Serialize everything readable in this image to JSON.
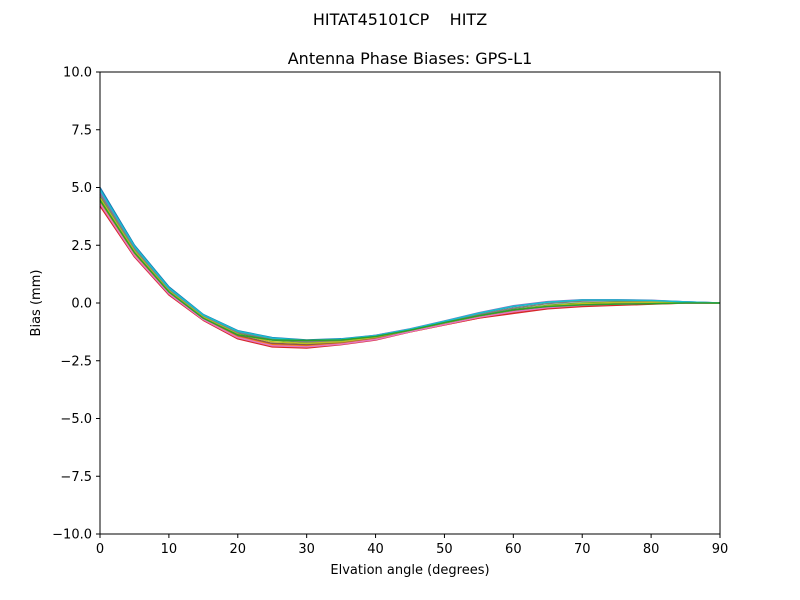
{
  "suptitle": "HITAT45101CP    HITZ",
  "chart_data": {
    "type": "line",
    "title": "Antenna Phase Biases: GPS-L1",
    "xlabel": "Elvation angle (degrees)",
    "ylabel": "Bias (mm)",
    "xlim": [
      0,
      90
    ],
    "ylim": [
      -10,
      10
    ],
    "xticks": [
      0,
      10,
      20,
      30,
      40,
      50,
      60,
      70,
      80,
      90
    ],
    "yticks": [
      -10.0,
      -7.5,
      -5.0,
      -2.5,
      0.0,
      2.5,
      5.0,
      7.5,
      10.0
    ],
    "grid": false,
    "legend": "none",
    "x": [
      0,
      5,
      10,
      15,
      20,
      25,
      30,
      35,
      40,
      45,
      50,
      55,
      60,
      65,
      70,
      75,
      80,
      85,
      90
    ],
    "series": [
      {
        "color": "#1f77b4",
        "values": [
          5.0,
          2.5,
          0.7,
          -0.5,
          -1.2,
          -1.5,
          -1.6,
          -1.55,
          -1.4,
          -1.15,
          -0.8,
          -0.45,
          -0.15,
          0.05,
          0.12,
          0.12,
          0.1,
          0.05,
          0.0
        ]
      },
      {
        "color": "#ff7f0e",
        "values": [
          4.4,
          2.15,
          0.45,
          -0.7,
          -1.45,
          -1.8,
          -1.85,
          -1.75,
          -1.55,
          -1.25,
          -0.95,
          -0.65,
          -0.4,
          -0.22,
          -0.12,
          -0.08,
          -0.04,
          0.0,
          0.0
        ]
      },
      {
        "color": "#2ca02c",
        "values": [
          4.6,
          2.3,
          0.55,
          -0.6,
          -1.3,
          -1.6,
          -1.7,
          -1.65,
          -1.45,
          -1.2,
          -0.88,
          -0.55,
          -0.28,
          -0.1,
          0.0,
          0.03,
          0.03,
          0.02,
          0.0
        ]
      },
      {
        "color": "#d62728",
        "values": [
          4.2,
          2.0,
          0.35,
          -0.75,
          -1.55,
          -1.9,
          -1.95,
          -1.8,
          -1.6,
          -1.25,
          -0.95,
          -0.65,
          -0.45,
          -0.25,
          -0.15,
          -0.1,
          -0.05,
          0.0,
          0.0
        ]
      },
      {
        "color": "#9467bd",
        "values": [
          4.8,
          2.4,
          0.6,
          -0.55,
          -1.25,
          -1.55,
          -1.65,
          -1.6,
          -1.4,
          -1.12,
          -0.78,
          -0.42,
          -0.12,
          0.06,
          0.14,
          0.14,
          0.12,
          0.05,
          0.0
        ]
      },
      {
        "color": "#8c564b",
        "values": [
          4.5,
          2.2,
          0.5,
          -0.65,
          -1.4,
          -1.75,
          -1.8,
          -1.7,
          -1.5,
          -1.2,
          -0.9,
          -0.6,
          -0.35,
          -0.15,
          -0.05,
          0.0,
          0.02,
          0.01,
          0.0
        ]
      },
      {
        "color": "#e377c2",
        "values": [
          4.3,
          2.05,
          0.4,
          -0.72,
          -1.5,
          -1.85,
          -1.9,
          -1.78,
          -1.58,
          -1.24,
          -0.93,
          -0.62,
          -0.38,
          -0.2,
          -0.1,
          -0.05,
          -0.02,
          0.0,
          0.0
        ]
      },
      {
        "color": "#7f7f7f",
        "values": [
          4.7,
          2.35,
          0.58,
          -0.58,
          -1.28,
          -1.58,
          -1.68,
          -1.62,
          -1.42,
          -1.16,
          -0.83,
          -0.5,
          -0.22,
          -0.02,
          0.08,
          0.1,
          0.09,
          0.04,
          0.0
        ]
      },
      {
        "color": "#bcbd22",
        "values": [
          4.55,
          2.25,
          0.52,
          -0.62,
          -1.35,
          -1.68,
          -1.75,
          -1.68,
          -1.48,
          -1.18,
          -0.86,
          -0.56,
          -0.3,
          -0.12,
          -0.02,
          0.02,
          0.03,
          0.02,
          0.0
        ]
      },
      {
        "color": "#17becf",
        "values": [
          4.9,
          2.45,
          0.65,
          -0.52,
          -1.22,
          -1.52,
          -1.62,
          -1.57,
          -1.41,
          -1.13,
          -0.79,
          -0.44,
          -0.14,
          0.04,
          0.13,
          0.13,
          0.11,
          0.05,
          0.0
        ]
      },
      {
        "color": "#2ca02c",
        "values": [
          4.45,
          2.18,
          0.48,
          -0.66,
          -1.38,
          -1.6,
          -1.62,
          -1.6,
          -1.45,
          -1.18,
          -0.85,
          -0.55,
          -0.3,
          -0.15,
          -0.08,
          -0.05,
          -0.03,
          0.0,
          0.0
        ]
      }
    ]
  }
}
